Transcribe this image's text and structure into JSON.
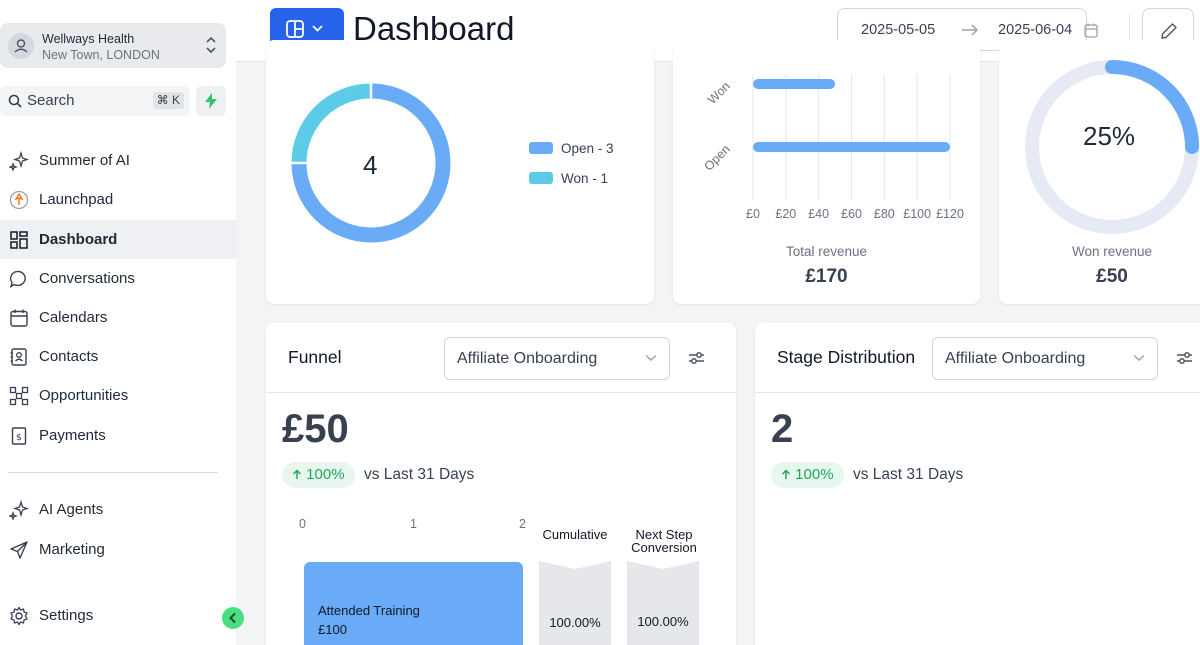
{
  "account": {
    "name": "Wellways Health",
    "location": "New Town, LONDON"
  },
  "search": {
    "label": "Search",
    "shortcut": "⌘ K"
  },
  "nav": {
    "items": [
      {
        "label": "Summer of AI",
        "icon": "sparkle-icon"
      },
      {
        "label": "Launchpad",
        "icon": "rocket-icon"
      },
      {
        "label": "Dashboard",
        "icon": "grid-icon",
        "active": true
      },
      {
        "label": "Conversations",
        "icon": "chat-bubble-icon"
      },
      {
        "label": "Calendars",
        "icon": "calendar-icon"
      },
      {
        "label": "Contacts",
        "icon": "contact-book-icon"
      },
      {
        "label": "Opportunities",
        "icon": "funnel-nodes-icon"
      },
      {
        "label": "Payments",
        "icon": "receipt-icon"
      }
    ],
    "bottom_items": [
      {
        "label": "AI Agents",
        "icon": "sparkle-icon"
      },
      {
        "label": "Marketing",
        "icon": "send-icon"
      }
    ],
    "settings": {
      "label": "Settings",
      "icon": "gear-icon"
    }
  },
  "header": {
    "title": "Dashboard",
    "date_start": "2025-05-05",
    "date_end": "2025-06-04"
  },
  "status_card": {
    "total": "4",
    "legend": [
      {
        "label": "Open - 3",
        "color": "#6aabf7"
      },
      {
        "label": "Won - 1",
        "color": "#5ccbe8"
      }
    ]
  },
  "revenue_card": {
    "caption": "Total revenue",
    "value": "£170",
    "categories": [
      "Won",
      "Open"
    ],
    "x_ticks": [
      "£0",
      "£20",
      "£40",
      "£60",
      "£80",
      "£100",
      "£120"
    ],
    "bar_color": "#6aabf7"
  },
  "won_revenue_card": {
    "percent": "25%",
    "caption": "Won revenue",
    "value": "£50"
  },
  "funnel_card": {
    "title": "Funnel",
    "pipeline": "Affiliate Onboarding",
    "value": "£50",
    "change": "100%",
    "comparison": "vs Last 31 Days",
    "axis": [
      "0",
      "1",
      "2"
    ],
    "col_cumulative": "Cumulative",
    "col_next_line1": "Next Step",
    "col_next_line2": "Conversion",
    "stage_name": "Attended Training",
    "stage_value": "£100",
    "cumulative_pct": "100.00%",
    "next_pct": "100.00%"
  },
  "stage_card": {
    "title": "Stage Distribution",
    "pipeline": "Affiliate Onboarding",
    "value": "2",
    "change": "100%",
    "comparison": "vs Last 31 Days"
  },
  "chart_data": [
    {
      "type": "pie",
      "categories": [
        "Open",
        "Won"
      ],
      "values": [
        3,
        1
      ],
      "colors": [
        "#6aabf7",
        "#5ccbe8"
      ],
      "title": "",
      "legend": "right"
    },
    {
      "type": "bar",
      "orientation": "horizontal",
      "categories": [
        "Won",
        "Open"
      ],
      "values": [
        50,
        120
      ],
      "xlim": [
        0,
        120
      ],
      "x_ticks": [
        "£0",
        "£20",
        "£40",
        "£60",
        "£80",
        "£100",
        "£120"
      ],
      "title": "",
      "xlabel": "",
      "ylabel": "",
      "grid": true
    },
    {
      "type": "pie",
      "categories": [
        "Won revenue",
        "Remaining"
      ],
      "values": [
        25,
        75
      ],
      "colors": [
        "#6aabf7",
        "#e6eaf5"
      ],
      "title": ""
    },
    {
      "type": "bar",
      "orientation": "horizontal",
      "categories": [
        "Attended Training"
      ],
      "values": [
        2
      ],
      "xlim": [
        0,
        2
      ],
      "x_ticks": [
        "0",
        "1",
        "2"
      ],
      "title": "",
      "xlabel": "",
      "ylabel": ""
    }
  ]
}
